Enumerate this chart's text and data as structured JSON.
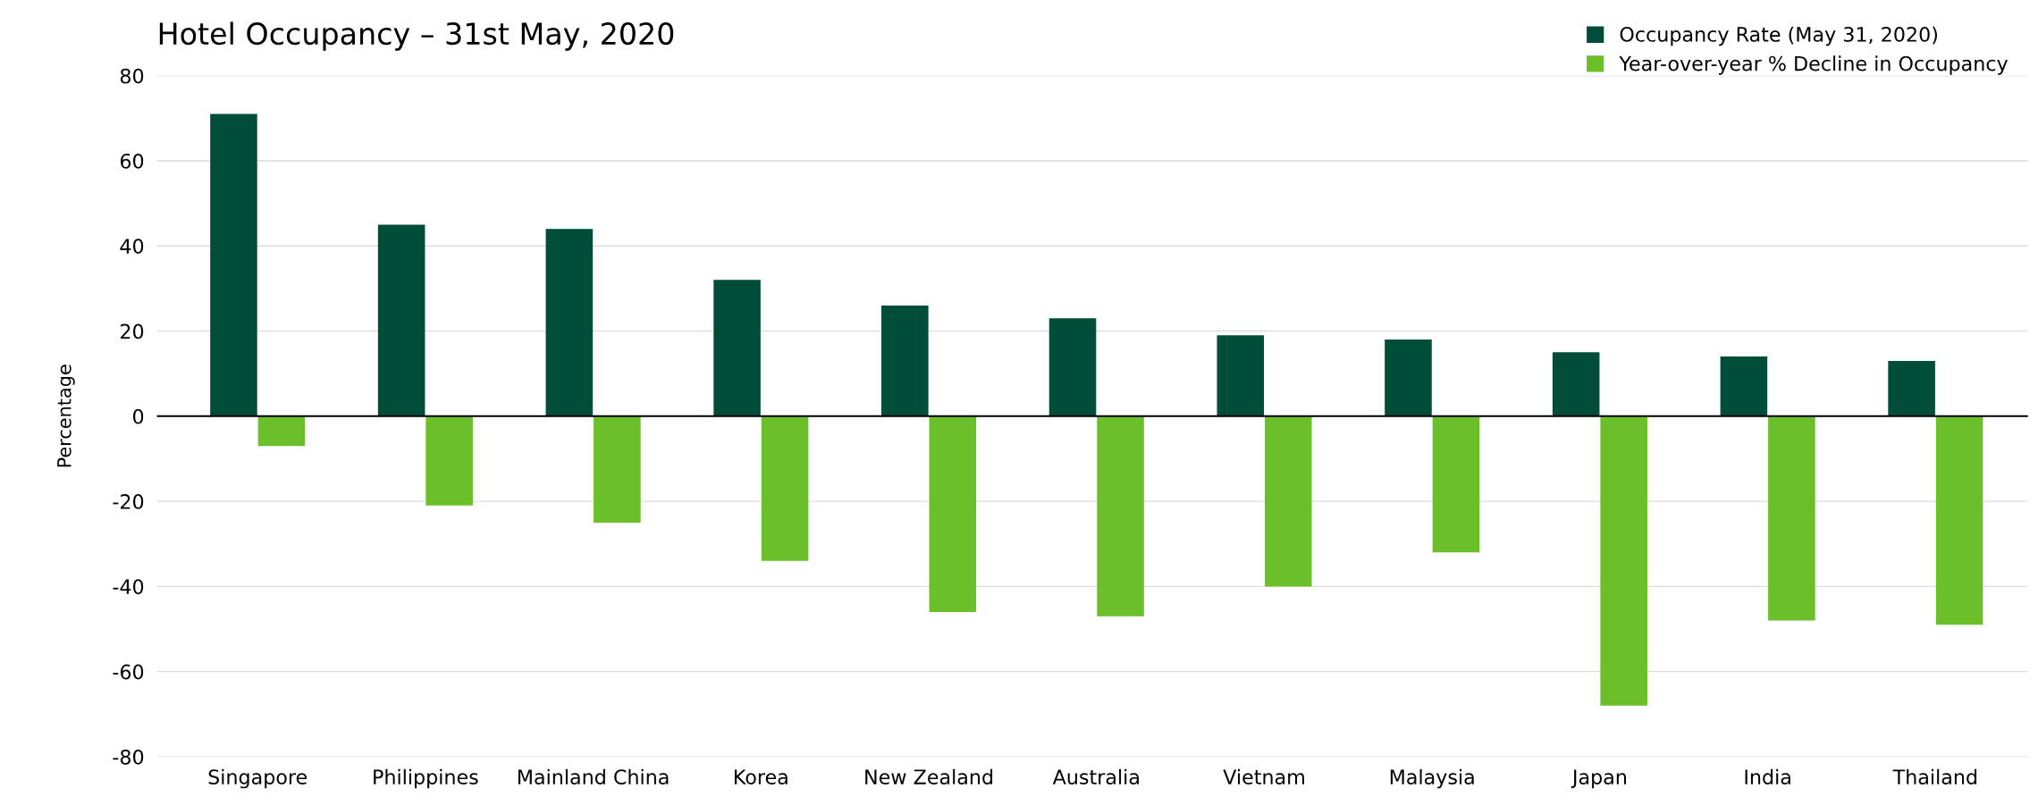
{
  "chart_data": {
    "type": "bar",
    "title": "Hotel Occupancy – 31st May, 2020",
    "ylabel": "Percentage",
    "categories": [
      "Singapore",
      "Philippines",
      "Mainland China",
      "Korea",
      "New Zealand",
      "Australia",
      "Vietnam",
      "Malaysia",
      "Japan",
      "India",
      "Thailand"
    ],
    "series": [
      {
        "name": "Occupancy Rate (May 31, 2020)",
        "color": "#004d3a",
        "values": [
          71,
          45,
          44,
          32,
          26,
          23,
          19,
          18,
          15,
          14,
          13
        ]
      },
      {
        "name": "Year-over-year % Decline in Occupancy",
        "color": "#6abf2a",
        "values": [
          -7,
          -21,
          -25,
          -34,
          -46,
          -47,
          -40,
          -32,
          -68,
          -48,
          -49
        ]
      }
    ],
    "ylim": [
      -80,
      80
    ],
    "yticks": [
      -80,
      -60,
      -40,
      -20,
      0,
      20,
      40,
      60,
      80
    ],
    "grid": "y",
    "legend": "top right",
    "ref_lines": [
      {
        "axis": "y",
        "value": 0,
        "color": "#000000"
      }
    ]
  }
}
